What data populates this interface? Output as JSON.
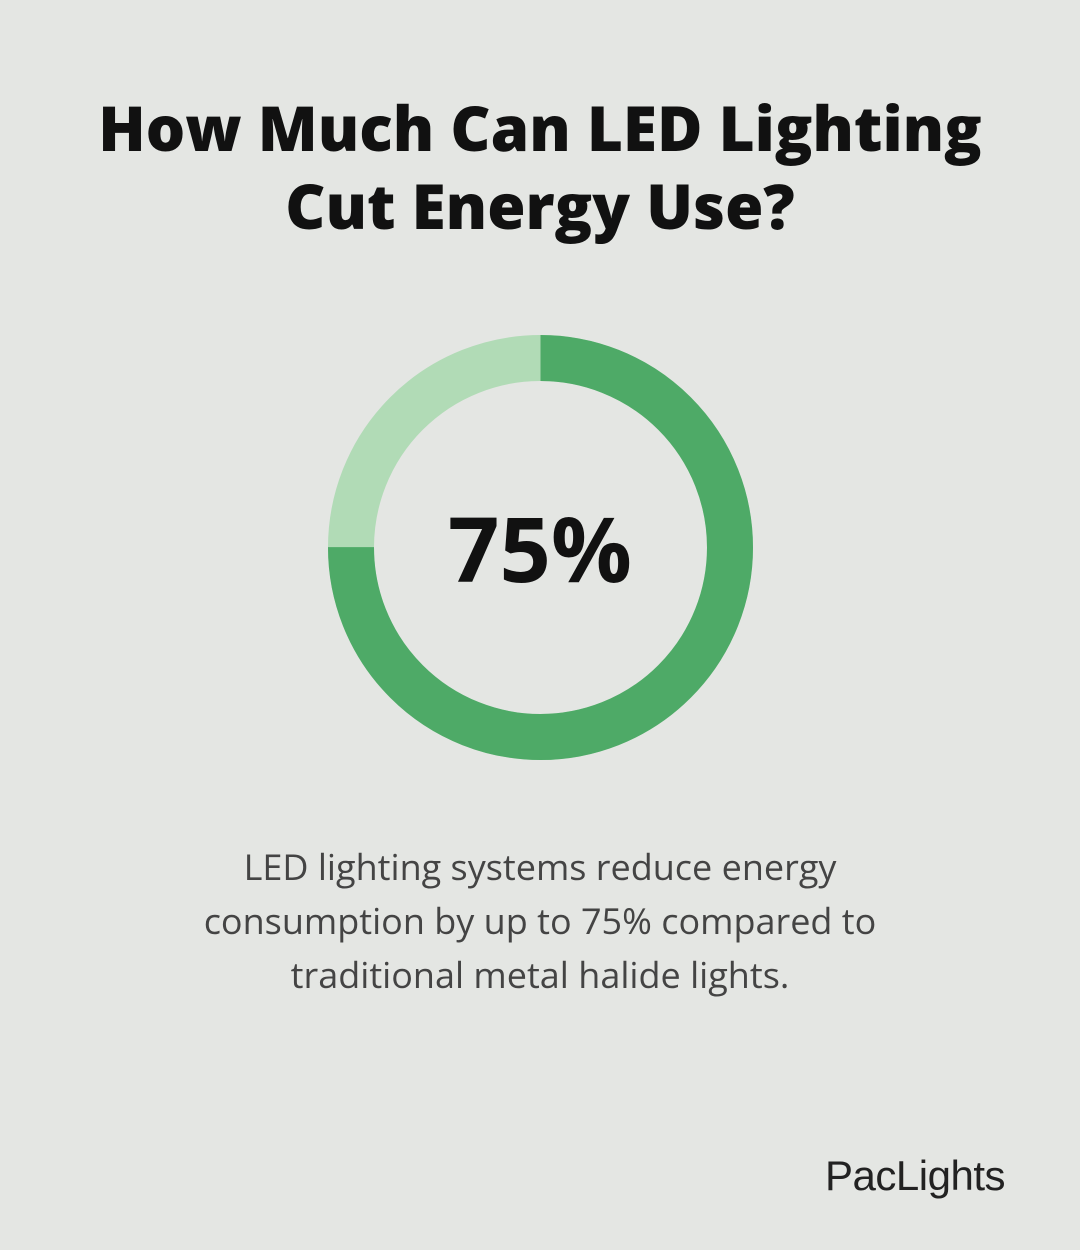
{
  "background_color": "#e4e6e3",
  "title": {
    "text": "How Much Can LED Lighting Cut Energy Use?",
    "color": "#111111",
    "fontsize": 62
  },
  "donut_chart": {
    "type": "donut",
    "percentage": 75,
    "display_value": "75%",
    "value_color": "#111111",
    "value_fontsize": 90,
    "size": 425,
    "stroke_width": 46,
    "fill_color": "#4eaa67",
    "track_color": "#b1dbb6",
    "start_angle": 0
  },
  "caption": {
    "text": "LED lighting systems reduce energy consumption by up to 75% compared to traditional metal halide lights.",
    "color": "#444444",
    "fontsize": 36
  },
  "brand": {
    "text": "PacLights",
    "color": "#222222",
    "fontsize": 42
  }
}
